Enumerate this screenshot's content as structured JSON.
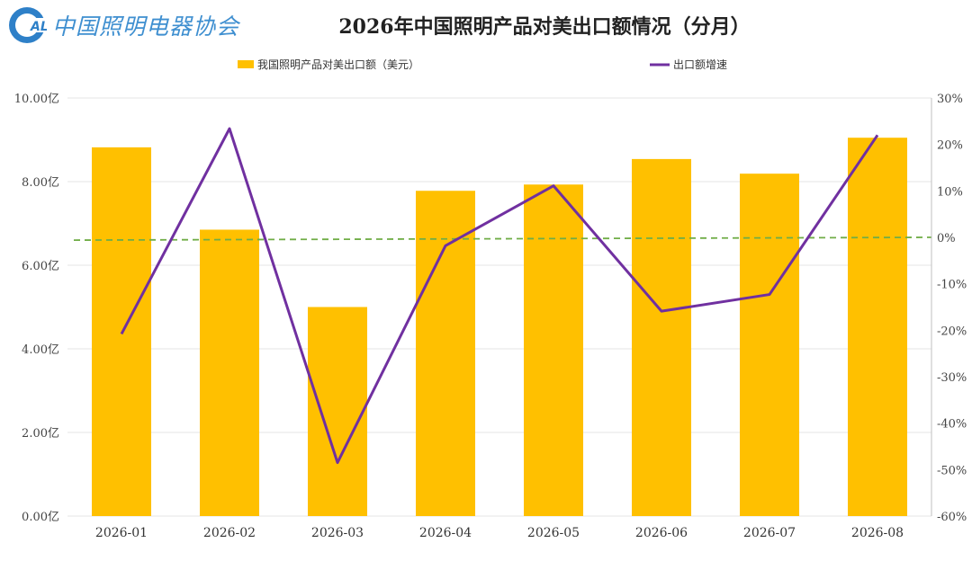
{
  "logo": {
    "badge_text": "ALI",
    "org_name": "中国照明电器协会"
  },
  "chart_data": {
    "type": "bar+line",
    "title": "2026年中国照明产品对美出口额情况（分月）",
    "categories": [
      "2026-01",
      "2026-02",
      "2026-03",
      "2026-04",
      "2026-05",
      "2026-06",
      "2026-07",
      "2026-08"
    ],
    "series": [
      {
        "name": "我国照明产品对美出口额（美元）",
        "type": "bar",
        "axis": "left",
        "color": "#FFC000",
        "values": [
          8.82,
          6.85,
          5.0,
          7.78,
          7.93,
          8.54,
          8.19,
          9.05
        ]
      },
      {
        "name": "出口额增速",
        "type": "line",
        "axis": "right",
        "color": "#7030A0",
        "values": [
          -20.8,
          23.4,
          -48.5,
          -1.8,
          11.1,
          -15.9,
          -12.3,
          22.0
        ]
      }
    ],
    "left_axis": {
      "ylim": [
        0,
        10
      ],
      "ticks": [
        "0.00亿",
        "2.00亿",
        "4.00亿",
        "6.00亿",
        "8.00亿",
        "10.00亿"
      ]
    },
    "right_axis": {
      "ylim": [
        -60,
        30
      ],
      "ticks": [
        "-60%",
        "-50%",
        "-40%",
        "-30%",
        "-20%",
        "-10%",
        "0%",
        "10%",
        "20%",
        "30%"
      ]
    },
    "reference_line": {
      "style": "dashed",
      "color": "#70AD47",
      "y_start_pct": -0.6,
      "y_end_pct": 0.0
    },
    "legend_position": "top",
    "grid": true
  }
}
